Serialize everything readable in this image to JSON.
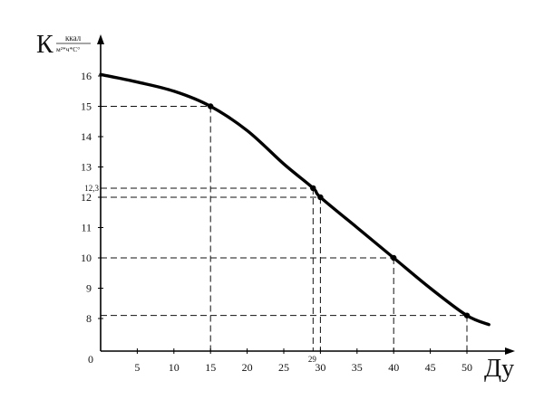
{
  "chart_data": {
    "type": "line",
    "title": "",
    "ylabel": "К",
    "ylabel_unit_numerator": "ккал",
    "ylabel_unit_denominator": "м²*ч*С°",
    "xlabel": "Ду",
    "xlim": [
      0,
      53
    ],
    "ylim": [
      7,
      16.5
    ],
    "x_ticks": [
      {
        "value": 0,
        "label": "0"
      },
      {
        "value": 5,
        "label": "5"
      },
      {
        "value": 10,
        "label": "10"
      },
      {
        "value": 15,
        "label": "15"
      },
      {
        "value": 20,
        "label": "20"
      },
      {
        "value": 25,
        "label": "25"
      },
      {
        "value": 30,
        "label": "30"
      },
      {
        "value": 35,
        "label": "35"
      },
      {
        "value": 40,
        "label": "40"
      },
      {
        "value": 45,
        "label": "45"
      },
      {
        "value": 50,
        "label": "50"
      }
    ],
    "y_ticks": [
      {
        "value": 8,
        "label": "8"
      },
      {
        "value": 9,
        "label": "9"
      },
      {
        "value": 10,
        "label": "10"
      },
      {
        "value": 11,
        "label": "11"
      },
      {
        "value": 12,
        "label": "12"
      },
      {
        "value": 13,
        "label": "13"
      },
      {
        "value": 14,
        "label": "14"
      },
      {
        "value": 15,
        "label": "15"
      },
      {
        "value": 16,
        "label": "16"
      }
    ],
    "extra_x_labels": [
      {
        "value": 29,
        "label": "29"
      }
    ],
    "extra_y_labels": [
      {
        "value": 12.3,
        "label": "12,3"
      }
    ],
    "curve": {
      "x": [
        0,
        5,
        10,
        15,
        20,
        25,
        29,
        30,
        35,
        40,
        45,
        50,
        53
      ],
      "y": [
        16.05,
        15.8,
        15.5,
        15.0,
        14.2,
        13.1,
        12.3,
        12.0,
        11.0,
        10.0,
        9.0,
        8.1,
        7.8
      ]
    },
    "points": [
      {
        "x": 15,
        "y": 15
      },
      {
        "x": 29,
        "y": 12.3
      },
      {
        "x": 30,
        "y": 12
      },
      {
        "x": 40,
        "y": 10
      },
      {
        "x": 50,
        "y": 8.1
      }
    ],
    "grid": false,
    "colors": {
      "line": "#000000",
      "guide": "#111111"
    }
  }
}
